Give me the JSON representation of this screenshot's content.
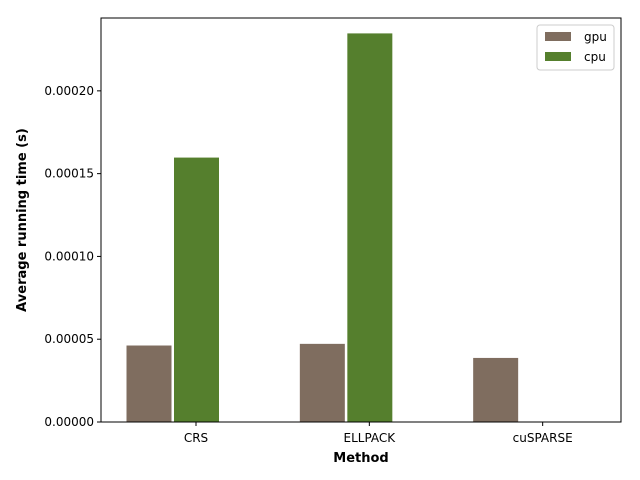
{
  "chart_data": {
    "type": "bar",
    "xlabel": "Method",
    "ylabel": "Average running time (s)",
    "categories": [
      "CRS",
      "ELLPACK",
      "cuSPARSE"
    ],
    "series": [
      {
        "name": "gpu",
        "color": "#7f6d5f",
        "values": [
          4.65e-05,
          4.75e-05,
          3.9e-05
        ]
      },
      {
        "name": "cpu",
        "color": "#557f2d",
        "values": [
          0.00016,
          0.000235,
          0
        ]
      }
    ],
    "ylim": [
      0,
      0.000244
    ],
    "yticks": [
      {
        "value": 0.0,
        "label": "0.00000"
      },
      {
        "value": 5e-05,
        "label": "0.00005"
      },
      {
        "value": 0.0001,
        "label": "0.00010"
      },
      {
        "value": 0.00015,
        "label": "0.00015"
      },
      {
        "value": 0.0002,
        "label": "0.00020"
      }
    ],
    "grid": false,
    "legend_position": "top-right"
  }
}
